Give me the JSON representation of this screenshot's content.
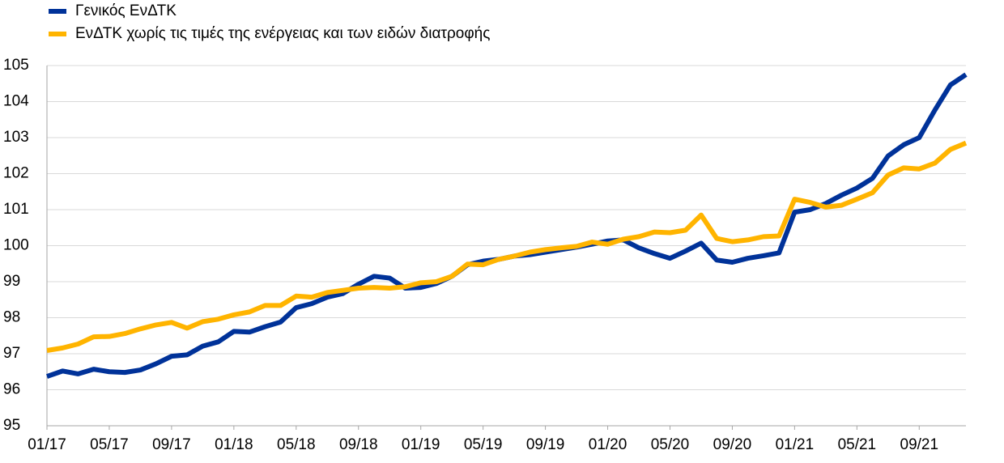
{
  "chart_data": {
    "type": "line",
    "categories": [
      "01/17",
      null,
      null,
      null,
      "05/17",
      null,
      null,
      null,
      "09/17",
      null,
      null,
      null,
      "01/18",
      null,
      null,
      null,
      "05/18",
      null,
      null,
      null,
      "09/18",
      null,
      null,
      null,
      "01/19",
      null,
      null,
      null,
      "05/19",
      null,
      null,
      null,
      "09/19",
      null,
      null,
      null,
      "01/20",
      null,
      null,
      null,
      "05/20",
      null,
      null,
      null,
      "09/20",
      null,
      null,
      null,
      "01/21",
      null,
      null,
      null,
      "05/21",
      null,
      null,
      null,
      "09/21",
      null,
      null,
      null
    ],
    "series": [
      {
        "name": "Γενικός ΕνΔΤΚ",
        "color": "#003299",
        "values": [
          96.37,
          96.52,
          96.44,
          96.57,
          96.5,
          96.48,
          96.55,
          96.72,
          96.93,
          96.97,
          97.21,
          97.33,
          97.62,
          97.6,
          97.75,
          97.88,
          98.28,
          98.39,
          98.57,
          98.67,
          98.93,
          99.15,
          99.1,
          98.82,
          98.84,
          98.95,
          99.15,
          99.47,
          99.57,
          99.62,
          99.71,
          99.75,
          99.82,
          99.89,
          99.96,
          100.04,
          100.13,
          100.16,
          99.94,
          99.78,
          99.65,
          99.85,
          100.07,
          99.6,
          99.54,
          99.65,
          99.72,
          99.8,
          100.93,
          101.0,
          101.17,
          101.4,
          101.6,
          101.87,
          102.49,
          102.8,
          103.0,
          103.76,
          104.46,
          104.75
        ]
      },
      {
        "name": "ΕνΔΤΚ χωρίς τις τιμές της ενέργειας και των ειδών διατροφής",
        "color": "#ffb400",
        "values": [
          97.09,
          97.16,
          97.27,
          97.47,
          97.48,
          97.56,
          97.69,
          97.8,
          97.87,
          97.71,
          97.89,
          97.96,
          98.08,
          98.16,
          98.34,
          98.34,
          98.6,
          98.57,
          98.7,
          98.76,
          98.82,
          98.84,
          98.82,
          98.86,
          98.97,
          99.0,
          99.15,
          99.49,
          99.47,
          99.62,
          99.71,
          99.82,
          99.89,
          99.94,
          99.98,
          100.1,
          100.04,
          100.18,
          100.25,
          100.38,
          100.36,
          100.43,
          100.85,
          100.2,
          100.11,
          100.16,
          100.25,
          100.27,
          101.29,
          101.2,
          101.07,
          101.12,
          101.29,
          101.47,
          101.96,
          102.16,
          102.13,
          102.29,
          102.67,
          102.85
        ]
      }
    ],
    "ylim": [
      95,
      105
    ],
    "yticks": [
      95,
      96,
      97,
      98,
      99,
      100,
      101,
      102,
      103,
      104,
      105
    ],
    "grid": true,
    "legend": "top-left"
  }
}
